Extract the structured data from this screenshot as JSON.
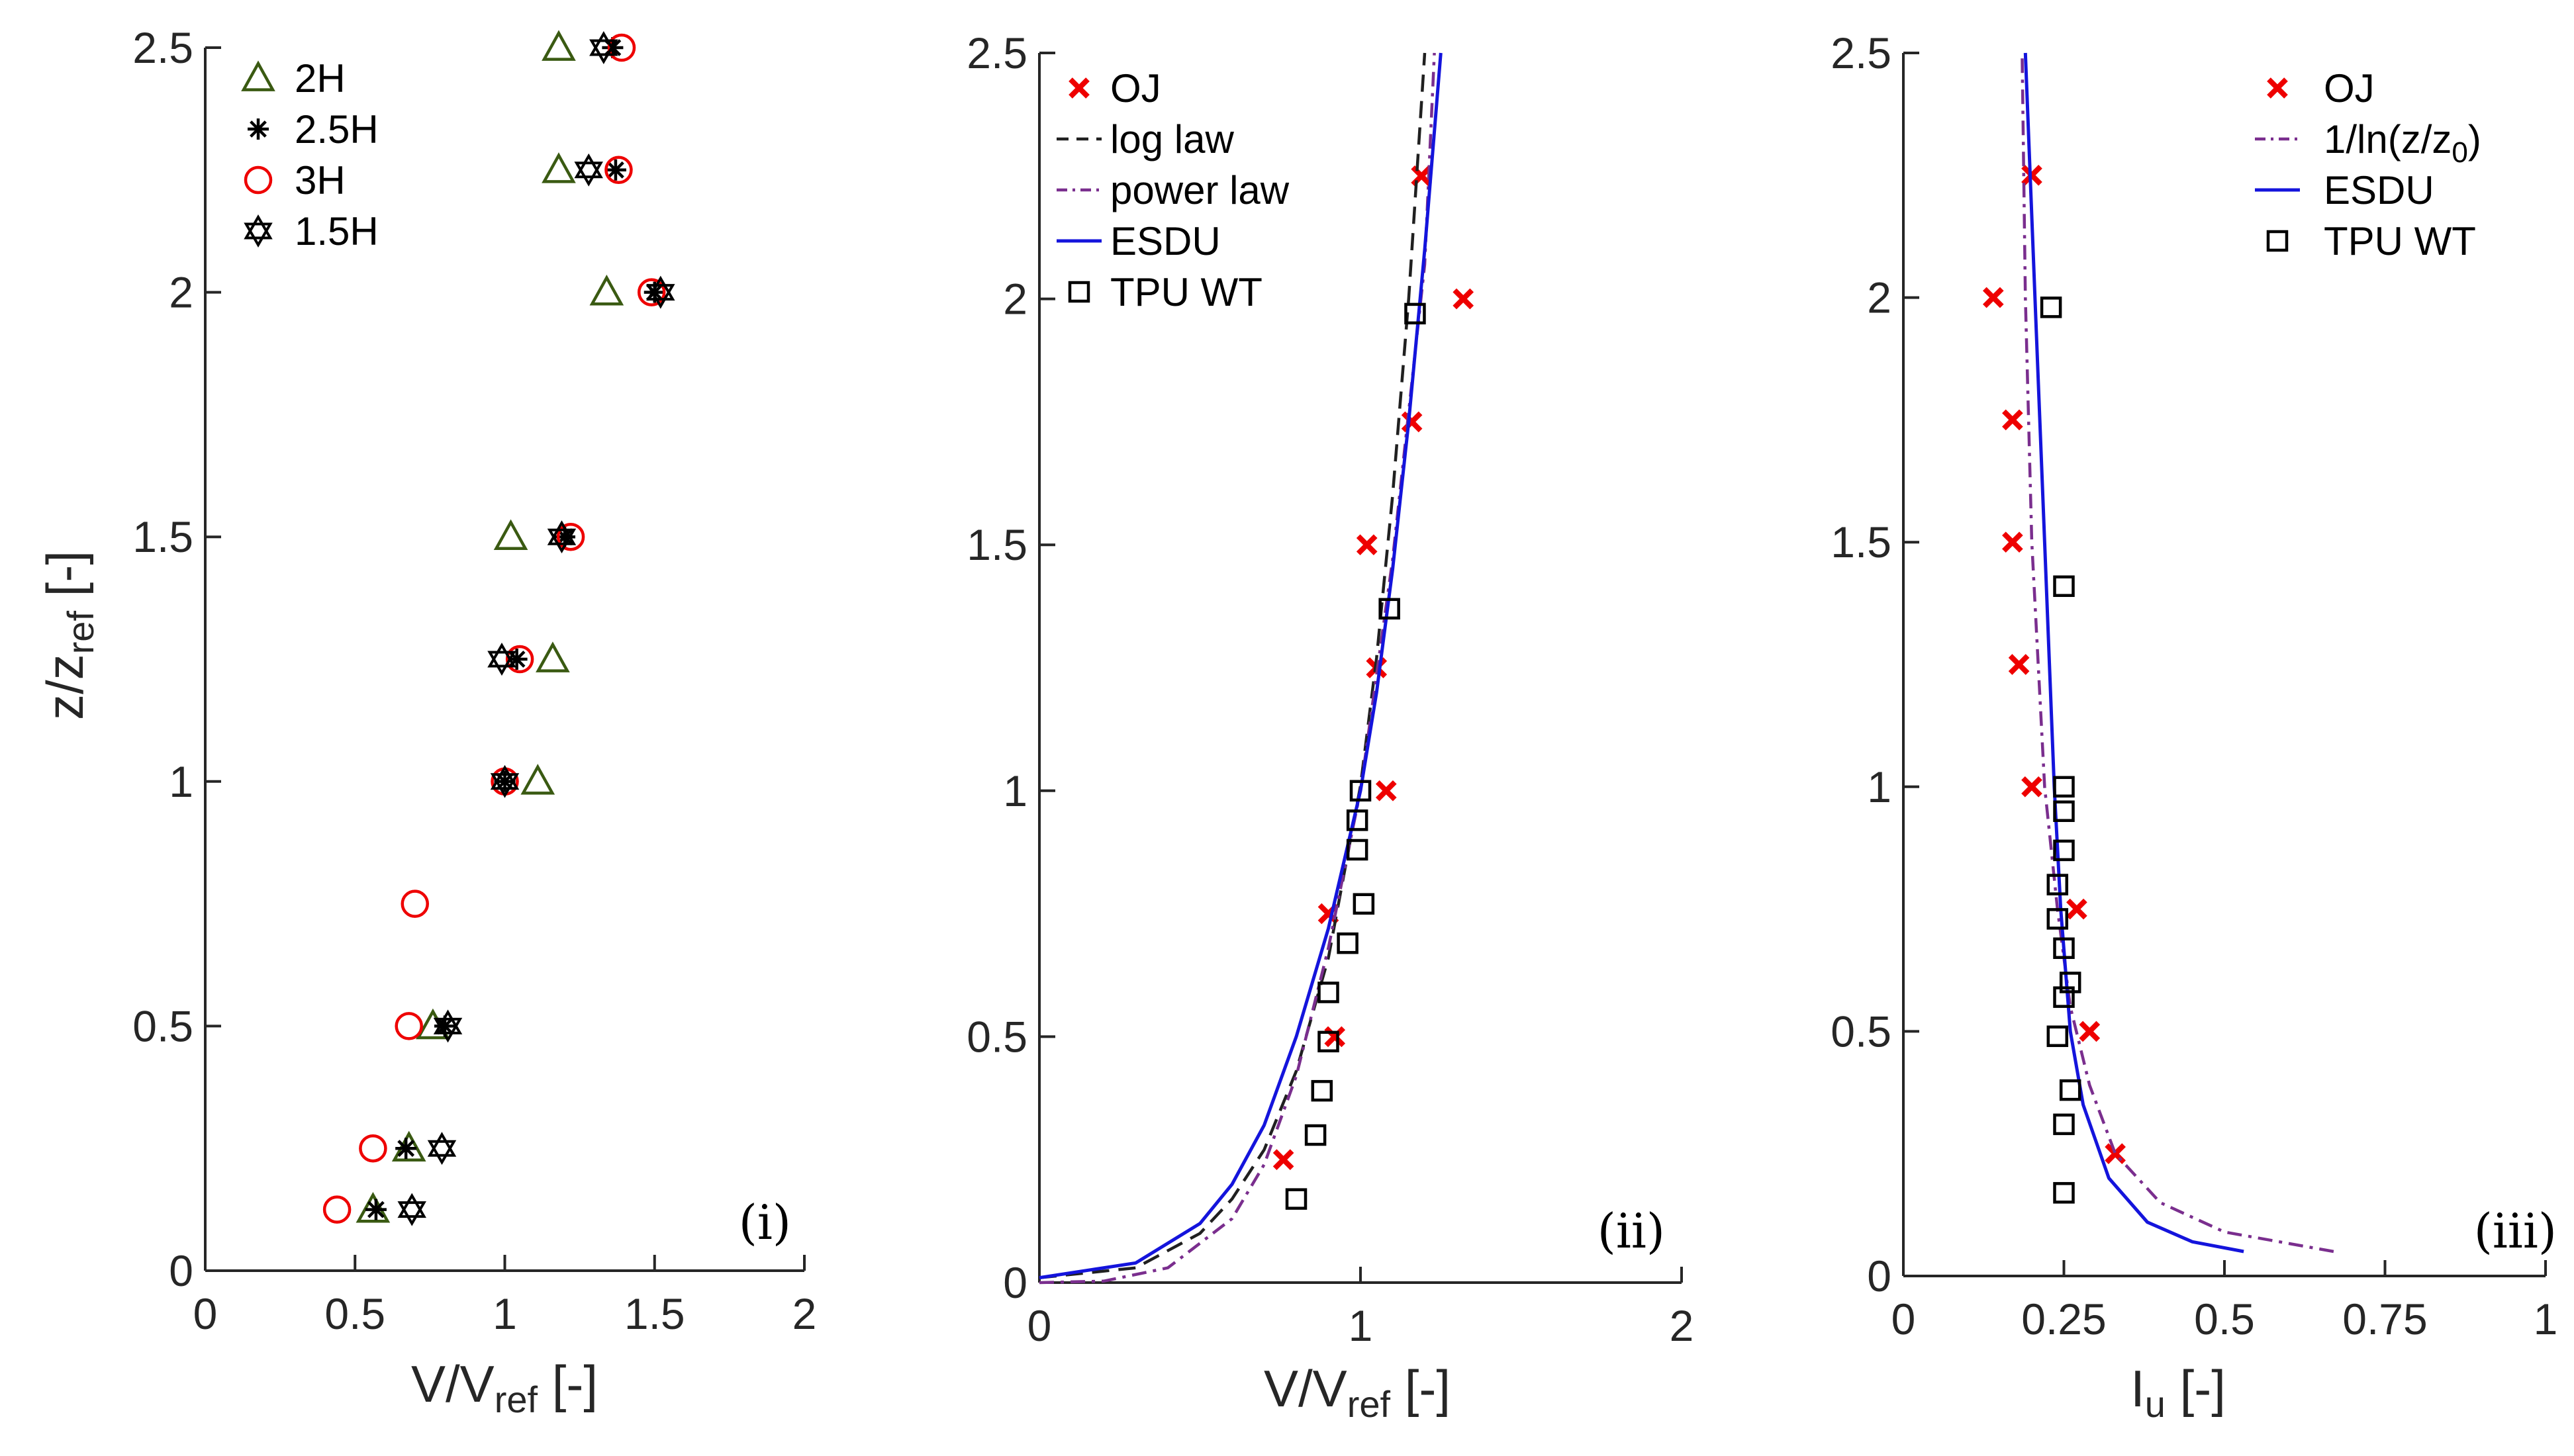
{
  "colors": {
    "red": "#ee0000",
    "green": "#3a5a12",
    "black": "#000000",
    "blue": "#1414dc",
    "purple": "#7a2e8e",
    "dashblack": "#202020"
  },
  "chart_data": [
    {
      "type": "scatter",
      "panel_label": "(i)",
      "xlabel": "V/V",
      "xlabel_sub": "ref",
      "xlabel_tail": " [-]",
      "ylabel": "z/z",
      "ylabel_sub": "ref",
      "ylabel_tail": " [-]",
      "xlim": [
        0,
        2
      ],
      "ylim": [
        0,
        2.5
      ],
      "xticks": [
        0,
        0.5,
        1,
        1.5,
        2
      ],
      "xtick_labels": [
        "0",
        "0.5",
        "1",
        "1.5",
        "2"
      ],
      "yticks": [
        0,
        0.5,
        1,
        1.5,
        2,
        2.5
      ],
      "ytick_labels": [
        "0",
        "0.5",
        "1",
        "1.5",
        "2",
        "2.5"
      ],
      "legend_position": "top-left",
      "series": [
        {
          "name": "2H",
          "marker": "triangle",
          "color": "green",
          "points": [
            [
              0.56,
              0.125
            ],
            [
              0.68,
              0.25
            ],
            [
              0.76,
              0.5
            ],
            [
              1.11,
              1.0
            ],
            [
              1.16,
              1.25
            ],
            [
              1.02,
              1.5
            ],
            [
              1.34,
              2.0
            ],
            [
              1.18,
              2.25
            ],
            [
              1.18,
              2.5
            ]
          ]
        },
        {
          "name": "2.5H",
          "marker": "asterisk",
          "color": "black",
          "points": [
            [
              0.57,
              0.125
            ],
            [
              0.67,
              0.25
            ],
            [
              0.8,
              0.5
            ],
            [
              1.0,
              1.0
            ],
            [
              1.04,
              1.25
            ],
            [
              1.2,
              1.5
            ],
            [
              1.5,
              2.0
            ],
            [
              1.37,
              2.25
            ],
            [
              1.36,
              2.5
            ]
          ]
        },
        {
          "name": "3H",
          "marker": "circle",
          "color": "red",
          "points": [
            [
              0.44,
              0.125
            ],
            [
              0.56,
              0.25
            ],
            [
              0.68,
              0.5
            ],
            [
              0.7,
              0.75
            ],
            [
              1.0,
              1.0
            ],
            [
              1.05,
              1.25
            ],
            [
              1.22,
              1.5
            ],
            [
              1.49,
              2.0
            ],
            [
              1.38,
              2.25
            ],
            [
              1.39,
              2.5
            ]
          ]
        },
        {
          "name": "1.5H",
          "marker": "hexagram",
          "color": "black",
          "points": [
            [
              0.69,
              0.125
            ],
            [
              0.79,
              0.25
            ],
            [
              0.81,
              0.5
            ],
            [
              1.0,
              1.0
            ],
            [
              0.99,
              1.25
            ],
            [
              1.19,
              1.5
            ],
            [
              1.52,
              2.0
            ],
            [
              1.28,
              2.25
            ],
            [
              1.33,
              2.5
            ]
          ]
        }
      ]
    },
    {
      "type": "line",
      "panel_label": "(ii)",
      "xlabel": "V/V",
      "xlabel_sub": "ref",
      "xlabel_tail": " [-]",
      "xlim": [
        0,
        2
      ],
      "ylim": [
        0,
        2.5
      ],
      "xticks": [
        0,
        1,
        2
      ],
      "xtick_labels": [
        "0",
        "1",
        "2"
      ],
      "yticks": [
        0,
        0.5,
        1,
        1.5,
        2,
        2.5
      ],
      "ytick_labels": [
        "0",
        "0.5",
        "1",
        "1.5",
        "2",
        "2.5"
      ],
      "legend_position": "top-left",
      "series": [
        {
          "name": "OJ",
          "style": "x-marker",
          "color": "red",
          "points": [
            [
              0.76,
              0.25
            ],
            [
              0.92,
              0.5
            ],
            [
              0.9,
              0.75
            ],
            [
              1.08,
              1.0
            ],
            [
              1.05,
              1.25
            ],
            [
              1.02,
              1.5
            ],
            [
              1.16,
              1.75
            ],
            [
              1.32,
              2.0
            ],
            [
              1.19,
              2.25
            ]
          ]
        },
        {
          "name": "log  law",
          "style": "dashed",
          "color": "dashblack",
          "points": [
            [
              0.0,
              0.01
            ],
            [
              0.3,
              0.03
            ],
            [
              0.5,
              0.1
            ],
            [
              0.6,
              0.17
            ],
            [
              0.7,
              0.27
            ],
            [
              0.8,
              0.43
            ],
            [
              0.9,
              0.66
            ],
            [
              1.0,
              1.01
            ],
            [
              1.05,
              1.27
            ],
            [
              1.1,
              1.6
            ],
            [
              1.15,
              2.0
            ],
            [
              1.19,
              2.4
            ],
            [
              1.2,
              2.5
            ]
          ]
        },
        {
          "name": "power law",
          "style": "dashdot",
          "color": "purple",
          "points": [
            [
              0.0,
              0.0
            ],
            [
              0.2,
              0.003
            ],
            [
              0.4,
              0.03
            ],
            [
              0.6,
              0.13
            ],
            [
              0.7,
              0.24
            ],
            [
              0.8,
              0.42
            ],
            [
              0.9,
              0.68
            ],
            [
              1.0,
              1.0
            ],
            [
              1.1,
              1.47
            ],
            [
              1.2,
              2.07
            ],
            [
              1.23,
              2.5
            ]
          ]
        },
        {
          "name": "ESDU",
          "style": "solid",
          "color": "blue",
          "points": [
            [
              0.0,
              0.01
            ],
            [
              0.3,
              0.04
            ],
            [
              0.5,
              0.12
            ],
            [
              0.6,
              0.2
            ],
            [
              0.7,
              0.32
            ],
            [
              0.8,
              0.5
            ],
            [
              0.9,
              0.72
            ],
            [
              1.0,
              1.0
            ],
            [
              1.05,
              1.2
            ],
            [
              1.1,
              1.45
            ],
            [
              1.15,
              1.75
            ],
            [
              1.2,
              2.1
            ],
            [
              1.25,
              2.5
            ]
          ]
        },
        {
          "name": "TPU WT",
          "style": "square-marker",
          "color": "black",
          "points": [
            [
              0.8,
              0.17
            ],
            [
              0.86,
              0.3
            ],
            [
              0.88,
              0.39
            ],
            [
              0.9,
              0.49
            ],
            [
              0.9,
              0.59
            ],
            [
              0.96,
              0.69
            ],
            [
              1.01,
              0.77
            ],
            [
              0.99,
              0.88
            ],
            [
              0.99,
              0.94
            ],
            [
              1.0,
              1.0
            ],
            [
              1.09,
              1.37
            ],
            [
              1.17,
              1.97
            ]
          ]
        }
      ]
    },
    {
      "type": "line",
      "panel_label": "(iii)",
      "xlabel": "I",
      "xlabel_sub": "u",
      "xlabel_tail": " [-]",
      "xlim": [
        0,
        1
      ],
      "ylim": [
        0,
        2.5
      ],
      "xticks": [
        0,
        0.25,
        0.5,
        0.75,
        1
      ],
      "xtick_labels": [
        "0",
        "0.25",
        "0.5",
        "0.75",
        "1"
      ],
      "yticks": [
        0,
        0.5,
        1,
        1.5,
        2,
        2.5
      ],
      "ytick_labels": [
        "0",
        "0.5",
        "1",
        "1.5",
        "2",
        "2.5"
      ],
      "legend_position": "top-right",
      "series": [
        {
          "name": "OJ",
          "style": "x-marker",
          "color": "red",
          "points": [
            [
              0.33,
              0.25
            ],
            [
              0.29,
              0.5
            ],
            [
              0.27,
              0.75
            ],
            [
              0.2,
              1.0
            ],
            [
              0.18,
              1.25
            ],
            [
              0.17,
              1.5
            ],
            [
              0.17,
              1.75
            ],
            [
              0.14,
              2.0
            ],
            [
              0.2,
              2.25
            ]
          ]
        },
        {
          "name": "1/ln(z/z",
          "name_sub": "0",
          "name_tail": ")",
          "style": "dashdot",
          "color": "purple",
          "points": [
            [
              0.67,
              0.05
            ],
            [
              0.5,
              0.09
            ],
            [
              0.4,
              0.15
            ],
            [
              0.33,
              0.25
            ],
            [
              0.29,
              0.39
            ],
            [
              0.26,
              0.55
            ],
            [
              0.24,
              0.75
            ],
            [
              0.22,
              1.0
            ],
            [
              0.2,
              1.5
            ],
            [
              0.19,
              2.0
            ],
            [
              0.185,
              2.5
            ]
          ]
        },
        {
          "name": "ESDU",
          "style": "solid",
          "color": "blue",
          "points": [
            [
              0.53,
              0.05
            ],
            [
              0.45,
              0.07
            ],
            [
              0.38,
              0.11
            ],
            [
              0.32,
              0.2
            ],
            [
              0.28,
              0.35
            ],
            [
              0.26,
              0.5
            ],
            [
              0.245,
              0.75
            ],
            [
              0.235,
              1.0
            ],
            [
              0.22,
              1.5
            ],
            [
              0.205,
              2.0
            ],
            [
              0.19,
              2.5
            ]
          ]
        },
        {
          "name": "TPU WT",
          "style": "square-marker",
          "color": "black",
          "points": [
            [
              0.25,
              0.17
            ],
            [
              0.25,
              0.31
            ],
            [
              0.26,
              0.38
            ],
            [
              0.24,
              0.49
            ],
            [
              0.25,
              0.57
            ],
            [
              0.26,
              0.6
            ],
            [
              0.25,
              0.67
            ],
            [
              0.24,
              0.73
            ],
            [
              0.24,
              0.8
            ],
            [
              0.25,
              0.87
            ],
            [
              0.25,
              0.95
            ],
            [
              0.25,
              1.0
            ],
            [
              0.25,
              1.41
            ],
            [
              0.23,
              1.98
            ]
          ]
        }
      ]
    }
  ]
}
